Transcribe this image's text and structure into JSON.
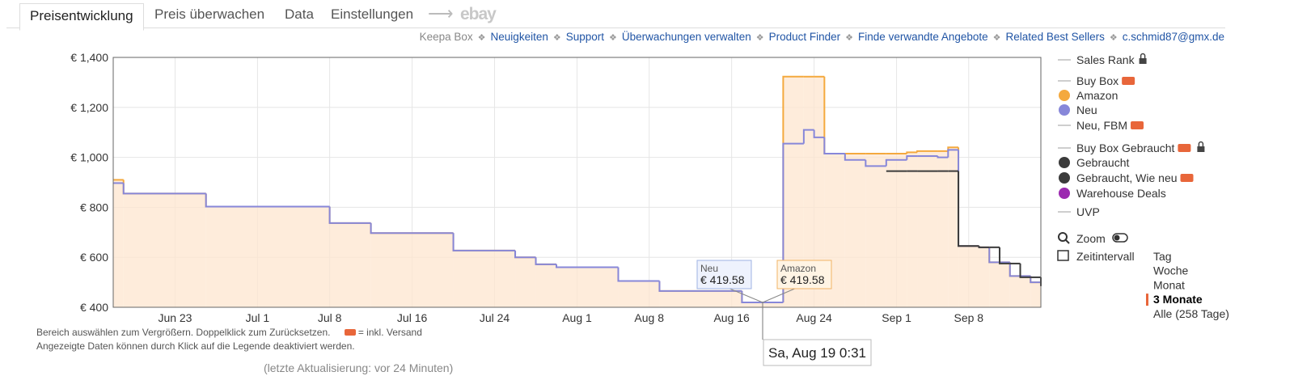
{
  "tabs": [
    "Preisentwicklung",
    "Preis überwachen",
    "Data",
    "Einstellungen",
    "ebay"
  ],
  "links": [
    "Keepa Box",
    "Neuigkeiten",
    "Support",
    "Überwachungen verwalten",
    "Product Finder",
    "Finde verwandte Angebote",
    "Related Best Sellers",
    "c.schmid87@gmx.de"
  ],
  "chart_data": {
    "type": "line",
    "step": true,
    "grid": true,
    "x": [
      "Jun 17",
      "Jun 18",
      "Jun 26",
      "Jul 8",
      "Jul 12",
      "Jul 20",
      "Jul 26",
      "Jul 28",
      "Jul 30",
      "Aug 5",
      "Aug 9",
      "Aug 17",
      "Aug 21",
      "Aug 23",
      "Aug 24",
      "Aug 25",
      "Aug 27",
      "Aug 29",
      "Aug 31",
      "Sep 2",
      "Sep 3",
      "Sep 5",
      "Sep 6",
      "Sep 7",
      "Sep 9",
      "Sep 10",
      "Sep 11",
      "Sep 12",
      "Sep 13",
      "Sep 14",
      "Sep 15"
    ],
    "xlim": [
      "Jun 17",
      "Sep 15"
    ],
    "xticks": [
      "Jun 23",
      "Jul 1",
      "Jul 8",
      "Jul 16",
      "Jul 24",
      "Aug 1",
      "Aug 8",
      "Aug 16",
      "Aug 24",
      "Sep 1",
      "Sep 8"
    ],
    "ylim": [
      400,
      1400
    ],
    "yticks": [
      {
        "value": 400,
        "label": "€ 400"
      },
      {
        "value": 600,
        "label": "€ 600"
      },
      {
        "value": 800,
        "label": "€ 800"
      },
      {
        "value": 1000,
        "label": "€ 1,000"
      },
      {
        "value": 1200,
        "label": "€ 1,200"
      },
      {
        "value": 1400,
        "label": "€ 1,400"
      }
    ],
    "series": [
      {
        "name": "Sales Rank",
        "marker": "line",
        "color": "#9e9e9e",
        "values": [
          null,
          null,
          null,
          null,
          null,
          null,
          null,
          null,
          null,
          null,
          null,
          null,
          null,
          null,
          null,
          null,
          null,
          null,
          null,
          null,
          null,
          null,
          null,
          null,
          null,
          null,
          null,
          null,
          null,
          null,
          null
        ]
      },
      {
        "name": "Buy Box",
        "marker": "line",
        "color": "#9e9e9e",
        "values": [
          null,
          null,
          null,
          null,
          null,
          null,
          null,
          null,
          null,
          null,
          null,
          null,
          null,
          null,
          null,
          null,
          null,
          null,
          null,
          null,
          null,
          null,
          null,
          null,
          null,
          null,
          null,
          null,
          null,
          null,
          null
        ]
      },
      {
        "name": "Amazon",
        "marker": "dot",
        "color": "#f4a93e",
        "fill": "#fde6cf",
        "values": [
          910,
          855,
          803,
          737,
          697,
          627,
          600,
          572,
          560,
          505,
          465,
          419.58,
          1323,
          1323,
          1323,
          1015,
          1015,
          1015,
          1015,
          1020,
          1025,
          1025,
          1040,
          645,
          640,
          580,
          580,
          525,
          525,
          500,
          485
        ]
      },
      {
        "name": "Neu",
        "marker": "dot",
        "color": "#8787d9",
        "values": [
          897,
          855,
          803,
          737,
          697,
          627,
          600,
          572,
          560,
          505,
          465,
          419.58,
          1055,
          1110,
          1080,
          1015,
          990,
          965,
          990,
          1005,
          1005,
          1000,
          1030,
          645,
          640,
          580,
          580,
          525,
          525,
          500,
          485
        ]
      },
      {
        "name": "Neu, FBM",
        "marker": "line",
        "color": "#9e9e9e",
        "values": [
          null,
          null,
          null,
          null,
          null,
          null,
          null,
          null,
          null,
          null,
          null,
          null,
          null,
          null,
          null,
          null,
          null,
          null,
          null,
          null,
          null,
          null,
          null,
          null,
          null,
          null,
          null,
          null,
          null,
          null,
          null
        ]
      },
      {
        "name": "Buy Box Gebraucht",
        "marker": "line",
        "color": "#9e9e9e",
        "values": [
          null,
          null,
          null,
          null,
          null,
          null,
          null,
          null,
          null,
          null,
          null,
          null,
          null,
          null,
          null,
          null,
          null,
          null,
          null,
          null,
          null,
          null,
          null,
          null,
          null,
          null,
          null,
          null,
          null,
          null,
          null
        ]
      },
      {
        "name": "Gebraucht",
        "marker": "dot",
        "color": "#3b3b3b",
        "values": [
          null,
          null,
          null,
          null,
          null,
          null,
          null,
          null,
          null,
          null,
          null,
          null,
          null,
          null,
          null,
          null,
          null,
          null,
          945,
          945,
          945,
          945,
          945,
          645,
          640,
          640,
          575,
          575,
          520,
          520,
          485
        ]
      },
      {
        "name": "Gebraucht, Wie neu",
        "marker": "dot",
        "color": "#3b3b3b",
        "values": [
          null,
          null,
          null,
          null,
          null,
          null,
          null,
          null,
          null,
          null,
          null,
          null,
          null,
          null,
          null,
          null,
          null,
          null,
          null,
          null,
          null,
          null,
          null,
          null,
          null,
          null,
          null,
          null,
          null,
          null,
          null
        ]
      },
      {
        "name": "Warehouse Deals",
        "marker": "dot",
        "color": "#9c2ab0",
        "values": [
          null,
          null,
          null,
          null,
          null,
          null,
          null,
          null,
          null,
          null,
          null,
          null,
          null,
          null,
          null,
          null,
          null,
          null,
          null,
          null,
          null,
          null,
          null,
          null,
          null,
          null,
          null,
          null,
          null,
          null,
          null
        ]
      },
      {
        "name": "UVP",
        "marker": "line",
        "color": "#9e9e9e",
        "values": [
          null,
          null,
          null,
          null,
          null,
          null,
          null,
          null,
          null,
          null,
          null,
          null,
          null,
          null,
          null,
          null,
          null,
          null,
          null,
          null,
          null,
          null,
          null,
          null,
          null,
          null,
          null,
          null,
          null,
          null,
          null
        ]
      }
    ]
  },
  "tooltip": {
    "date": "Sa, Aug 19 0:31",
    "items": [
      {
        "name": "Neu",
        "label": "€ 419.58"
      },
      {
        "name": "Amazon",
        "label": "€ 419.58"
      }
    ]
  },
  "controls": {
    "zoom": "Zoom",
    "interval_label": "Zeitintervall",
    "intervals": [
      "Tag",
      "Woche",
      "Monat",
      "3 Monate",
      "Alle (258 Tage)"
    ],
    "selected": 3
  },
  "notes": [
    "Bereich auswählen zum Vergrößern. Doppelklick zum Zurücksetzen.",
    "= inkl. Versand",
    "Angezeigte Daten können durch Klick auf die Legende deaktiviert werden."
  ],
  "last_update": "(letzte Aktualisierung: vor 24 Minuten)"
}
